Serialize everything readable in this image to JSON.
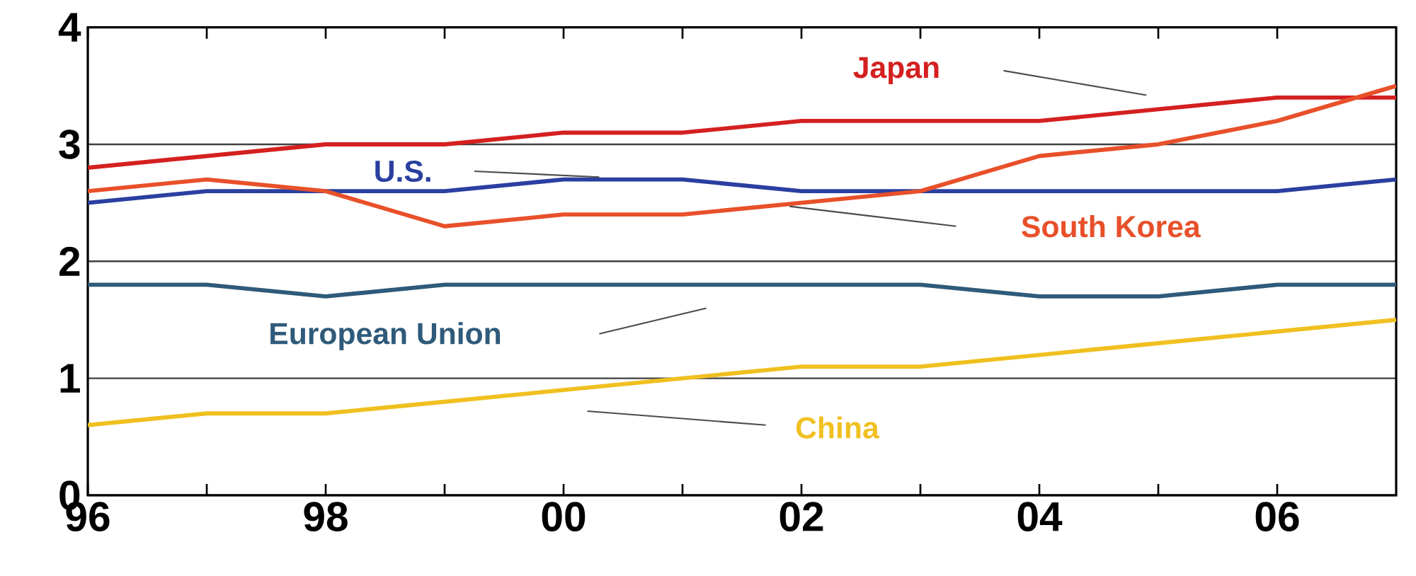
{
  "chart_data": {
    "type": "line",
    "x": [
      1996,
      1997,
      1998,
      1999,
      2000,
      2001,
      2002,
      2003,
      2004,
      2005,
      2006,
      2007
    ],
    "series": [
      {
        "name": "Japan",
        "color": "#d42020",
        "values": [
          2.8,
          2.9,
          3.0,
          3.0,
          3.1,
          3.1,
          3.2,
          3.2,
          3.2,
          3.3,
          3.4,
          3.4
        ]
      },
      {
        "name": "U.S.",
        "color": "#2a3fa0",
        "values": [
          2.5,
          2.6,
          2.6,
          2.6,
          2.7,
          2.7,
          2.6,
          2.6,
          2.6,
          2.6,
          2.6,
          2.7
        ]
      },
      {
        "name": "South Korea",
        "color": "#e8502a",
        "values": [
          2.6,
          2.7,
          2.6,
          2.3,
          2.4,
          2.4,
          2.5,
          2.6,
          2.9,
          3.0,
          3.2,
          3.5
        ]
      },
      {
        "name": "European Union",
        "color": "#2f5a7a",
        "values": [
          1.8,
          1.8,
          1.7,
          1.8,
          1.8,
          1.8,
          1.8,
          1.8,
          1.7,
          1.7,
          1.8,
          1.8
        ]
      },
      {
        "name": "China",
        "color": "#f0c020",
        "values": [
          0.6,
          0.7,
          0.7,
          0.8,
          0.9,
          1.0,
          1.1,
          1.1,
          1.2,
          1.3,
          1.4,
          1.5
        ]
      }
    ],
    "xlim": [
      1996,
      2007
    ],
    "ylim": [
      0,
      4
    ],
    "xticks": [
      {
        "value": 1996,
        "label": "96"
      },
      {
        "value": 1997,
        "label": null
      },
      {
        "value": 1998,
        "label": "98"
      },
      {
        "value": 1999,
        "label": null
      },
      {
        "value": 2000,
        "label": "00"
      },
      {
        "value": 2001,
        "label": null
      },
      {
        "value": 2002,
        "label": "02"
      },
      {
        "value": 2003,
        "label": null
      },
      {
        "value": 2004,
        "label": "04"
      },
      {
        "value": 2005,
        "label": null
      },
      {
        "value": 2006,
        "label": "06"
      }
    ],
    "yticks": [
      0,
      1,
      2,
      3,
      4
    ],
    "grid": "y",
    "legend": false,
    "marker": "none",
    "line_style": "solid"
  }
}
